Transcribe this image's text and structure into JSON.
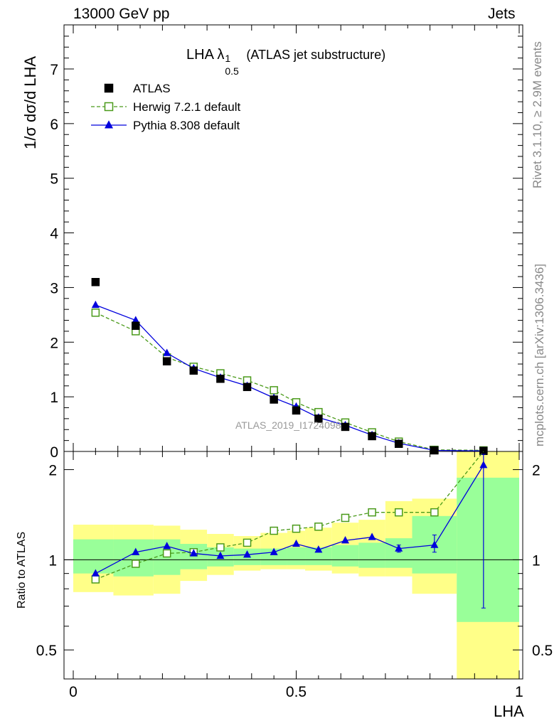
{
  "header": {
    "left": "13000 GeV pp",
    "right": "Jets"
  },
  "side": {
    "rivet": "Rivet 3.1.10, ≥ 2.9M events",
    "mcplots": "mcplots.cern.ch [arXiv:1306.3436]"
  },
  "watermark": "ATLAS_2019_I1724098",
  "main_title": {
    "prefix": "LHA λ",
    "sup": "1",
    "sub": "0.5",
    "suffix": " (ATLAS jet substructure)"
  },
  "y_label_main": "1/σ dσ/d LHA",
  "y_label_ratio": "Ratio to ATLAS",
  "x_label": "LHA",
  "colors": {
    "data": "#000000",
    "herwig": "#4a9a1a",
    "pythia": "#0000dd",
    "band_inner": "#99ff99",
    "band_outer": "#ffff88"
  },
  "chart_data": [
    {
      "type": "scatter",
      "panel": "main",
      "xlabel": "LHA",
      "ylabel": "1/σ dσ/d LHA",
      "xlim": [
        0,
        1
      ],
      "ylim": [
        0,
        7.8
      ],
      "yticks": [
        "0",
        "1",
        "2",
        "3",
        "4",
        "5",
        "6",
        "7"
      ],
      "x": [
        0.05,
        0.14,
        0.21,
        0.27,
        0.33,
        0.39,
        0.45,
        0.5,
        0.55,
        0.61,
        0.67,
        0.73,
        0.81,
        0.92
      ],
      "series": [
        {
          "name": "ATLAS",
          "style": "square-markers",
          "values": [
            3.1,
            2.3,
            1.65,
            1.48,
            1.33,
            1.18,
            0.95,
            0.75,
            0.6,
            0.45,
            0.28,
            0.14,
            0.02,
            0.01
          ]
        },
        {
          "name": "Herwig 7.2.1 default",
          "style": "dashed-open-square",
          "values": [
            2.54,
            2.2,
            1.72,
            1.55,
            1.43,
            1.3,
            1.12,
            0.9,
            0.72,
            0.53,
            0.35,
            0.18,
            0.03,
            0.02
          ]
        },
        {
          "name": "Pythia 8.308 default",
          "style": "solid-triangle",
          "values": [
            2.68,
            2.4,
            1.8,
            1.52,
            1.35,
            1.2,
            0.98,
            0.82,
            0.62,
            0.48,
            0.3,
            0.15,
            0.02,
            0.01
          ]
        }
      ],
      "legend": "top-left"
    },
    {
      "type": "line",
      "panel": "ratio",
      "xlabel": "LHA",
      "ylabel": "Ratio to ATLAS",
      "xlim": [
        0,
        1
      ],
      "ylim": [
        0.4,
        2.3
      ],
      "yscale": "log",
      "yticks": [
        "0.5",
        "1",
        "2"
      ],
      "xticks": [
        "0",
        "0.5",
        "1"
      ],
      "x": [
        0.05,
        0.14,
        0.21,
        0.27,
        0.33,
        0.39,
        0.45,
        0.5,
        0.55,
        0.61,
        0.67,
        0.73,
        0.81,
        0.92
      ],
      "series": [
        {
          "name": "Herwig 7.2.1 default",
          "values": [
            0.86,
            0.97,
            1.05,
            1.06,
            1.1,
            1.14,
            1.25,
            1.27,
            1.29,
            1.38,
            1.44,
            1.44,
            1.44,
            2.6
          ]
        },
        {
          "name": "Pythia 8.308 default",
          "values": [
            0.9,
            1.06,
            1.11,
            1.05,
            1.03,
            1.04,
            1.06,
            1.13,
            1.08,
            1.16,
            1.19,
            1.09,
            1.12,
            2.07
          ],
          "err_low": [
            0,
            0,
            0,
            0,
            0,
            0,
            0,
            0,
            0,
            0,
            0,
            0.03,
            0.06,
            1.38
          ],
          "err_high": [
            0,
            0,
            0,
            0,
            0,
            0,
            0,
            0,
            0,
            0,
            0,
            0.03,
            0.09,
            0.18
          ]
        }
      ],
      "bands": [
        {
          "x0": 0.0,
          "x1": 0.09,
          "inner": [
            0.9,
            1.17
          ],
          "outer": [
            0.78,
            1.31
          ]
        },
        {
          "x0": 0.09,
          "x1": 0.18,
          "inner": [
            0.88,
            1.17
          ],
          "outer": [
            0.76,
            1.31
          ]
        },
        {
          "x0": 0.18,
          "x1": 0.24,
          "inner": [
            0.89,
            1.17
          ],
          "outer": [
            0.77,
            1.3
          ]
        },
        {
          "x0": 0.24,
          "x1": 0.3,
          "inner": [
            0.93,
            1.13
          ],
          "outer": [
            0.85,
            1.26
          ]
        },
        {
          "x0": 0.3,
          "x1": 0.36,
          "inner": [
            0.95,
            1.1
          ],
          "outer": [
            0.89,
            1.22
          ]
        },
        {
          "x0": 0.36,
          "x1": 0.42,
          "inner": [
            0.96,
            1.09
          ],
          "outer": [
            0.92,
            1.2
          ]
        },
        {
          "x0": 0.42,
          "x1": 0.48,
          "inner": [
            0.96,
            1.09
          ],
          "outer": [
            0.93,
            1.23
          ]
        },
        {
          "x0": 0.48,
          "x1": 0.52,
          "inner": [
            0.96,
            1.1
          ],
          "outer": [
            0.93,
            1.25
          ]
        },
        {
          "x0": 0.52,
          "x1": 0.58,
          "inner": [
            0.96,
            1.1
          ],
          "outer": [
            0.92,
            1.28
          ]
        },
        {
          "x0": 0.58,
          "x1": 0.64,
          "inner": [
            0.95,
            1.12
          ],
          "outer": [
            0.9,
            1.33
          ]
        },
        {
          "x0": 0.64,
          "x1": 0.7,
          "inner": [
            0.94,
            1.14
          ],
          "outer": [
            0.88,
            1.36
          ]
        },
        {
          "x0": 0.7,
          "x1": 0.76,
          "inner": [
            0.94,
            1.18
          ],
          "outer": [
            0.88,
            1.57
          ]
        },
        {
          "x0": 0.76,
          "x1": 0.86,
          "inner": [
            0.9,
            1.4
          ],
          "outer": [
            0.77,
            1.6
          ]
        },
        {
          "x0": 0.86,
          "x1": 1.0,
          "inner": [
            0.62,
            1.88
          ],
          "outer": [
            0.4,
            2.3
          ]
        }
      ]
    }
  ]
}
